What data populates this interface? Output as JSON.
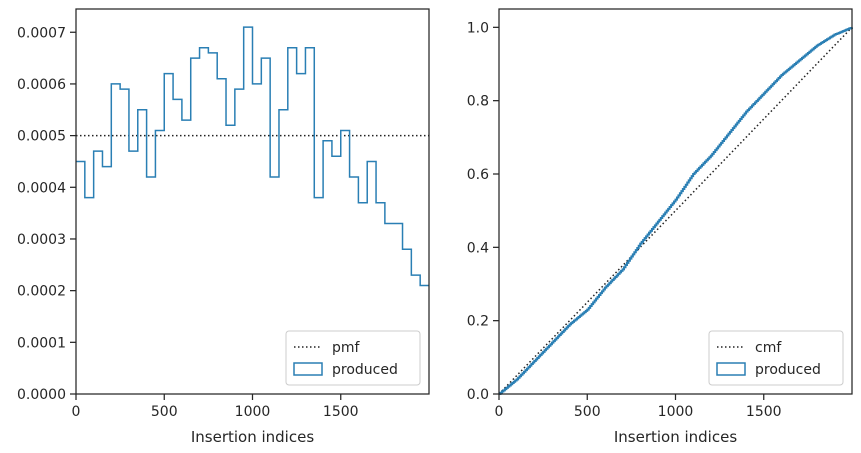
{
  "colors": {
    "produced": "#2a7fb4",
    "reference": "#222222",
    "axes": "#262626"
  },
  "chart_data": [
    {
      "type": "histogram",
      "xlabel": "Insertion indices",
      "ylabel": "",
      "xlim": [
        0,
        2000
      ],
      "ylim": [
        0,
        0.000745
      ],
      "xticks": [
        0,
        500,
        1000,
        1500
      ],
      "xtick_labels": [
        "0",
        "500",
        "1000",
        "1500"
      ],
      "yticks": [
        0,
        0.0001,
        0.0002,
        0.0003,
        0.0004,
        0.0005,
        0.0006,
        0.0007
      ],
      "ytick_labels": [
        "0.0000",
        "0.0001",
        "0.0002",
        "0.0003",
        "0.0004",
        "0.0005",
        "0.0006",
        "0.0007"
      ],
      "bin_width": 50,
      "legend_position": "lower right",
      "series": [
        {
          "name": "pmf",
          "kind": "dotted-line",
          "x": [
            0,
            2000
          ],
          "y": [
            0.0005,
            0.0005
          ]
        },
        {
          "name": "produced",
          "kind": "step-histogram",
          "bin_starts": [
            0,
            50,
            100,
            150,
            200,
            250,
            300,
            350,
            400,
            450,
            500,
            550,
            600,
            650,
            700,
            750,
            800,
            850,
            900,
            950,
            1000,
            1050,
            1100,
            1150,
            1200,
            1250,
            1300,
            1350,
            1400,
            1450,
            1500,
            1550,
            1600,
            1650,
            1700,
            1750,
            1800,
            1850,
            1900,
            1950
          ],
          "values": [
            0.00045,
            0.00038,
            0.00047,
            0.00044,
            0.0006,
            0.00059,
            0.00047,
            0.00055,
            0.00042,
            0.00051,
            0.00062,
            0.00057,
            0.00053,
            0.00065,
            0.00067,
            0.00066,
            0.00061,
            0.00052,
            0.00059,
            0.00071,
            0.0006,
            0.00065,
            0.00042,
            0.00055,
            0.00067,
            0.00062,
            0.00067,
            0.00038,
            0.00049,
            0.00046,
            0.00051,
            0.00042,
            0.00037,
            0.00045,
            0.00037,
            0.00033,
            0.00033,
            0.00028,
            0.00023,
            0.00021
          ]
        }
      ]
    },
    {
      "type": "line",
      "xlabel": "Insertion indices",
      "ylabel": "",
      "xlim": [
        0,
        2000
      ],
      "ylim": [
        0,
        1.05
      ],
      "xticks": [
        0,
        500,
        1000,
        1500
      ],
      "xtick_labels": [
        "0",
        "500",
        "1000",
        "1500"
      ],
      "yticks": [
        0,
        0.2,
        0.4,
        0.6,
        0.8,
        1.0
      ],
      "ytick_labels": [
        "0.0",
        "0.2",
        "0.4",
        "0.6",
        "0.8",
        "1.0"
      ],
      "legend_position": "lower right",
      "series": [
        {
          "name": "cmf",
          "kind": "dotted-line",
          "x": [
            0,
            2000
          ],
          "y": [
            0,
            1
          ]
        },
        {
          "name": "produced",
          "kind": "step-cumulative",
          "x": [
            0,
            100,
            200,
            300,
            400,
            500,
            600,
            700,
            800,
            900,
            1000,
            1100,
            1200,
            1300,
            1400,
            1500,
            1600,
            1700,
            1800,
            1900,
            2000
          ],
          "y": [
            0,
            0.04,
            0.09,
            0.14,
            0.19,
            0.23,
            0.29,
            0.34,
            0.41,
            0.47,
            0.53,
            0.6,
            0.65,
            0.71,
            0.77,
            0.82,
            0.87,
            0.91,
            0.95,
            0.98,
            1.0
          ]
        }
      ]
    }
  ]
}
